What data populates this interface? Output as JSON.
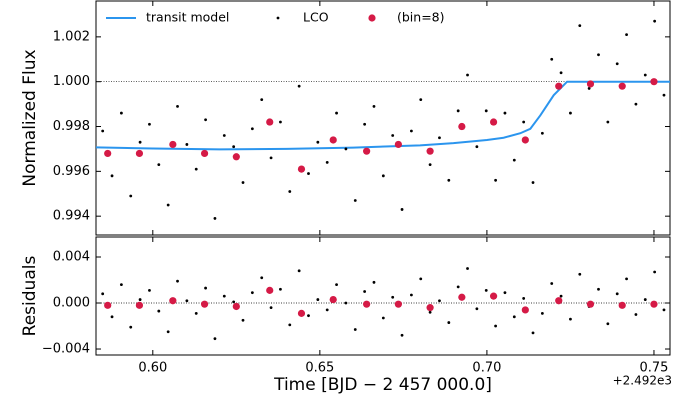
{
  "chart_data": [
    {
      "type": "scatter",
      "ylabel": "Normalized Flux",
      "xlim": [
        0.583,
        0.7548
      ],
      "ylim": [
        0.99316,
        1.0036
      ],
      "xticks": [
        0.6,
        0.65,
        0.7,
        0.75
      ],
      "yticks": [
        0.994,
        0.996,
        0.998,
        {
          "value": 1,
          "label": "1.000"
        },
        1.002
      ],
      "hline": 1,
      "legend": "upper left",
      "series": [
        {
          "name": "transit model",
          "color": "#2b95ee",
          "style": "line",
          "x": [
            0.583,
            0.6,
            0.62,
            0.64,
            0.66,
            0.68,
            0.69,
            0.7,
            0.705,
            0.71,
            0.713,
            0.716,
            0.72,
            0.724,
            0.73,
            0.7548
          ],
          "values": [
            0.99707,
            0.99702,
            0.99698,
            0.997,
            0.99706,
            0.99716,
            0.99726,
            0.9974,
            0.9975,
            0.9977,
            0.9979,
            0.9985,
            0.9994,
            1,
            1,
            1
          ]
        },
        {
          "name": "LCO",
          "color": "#000000",
          "style": "points",
          "x": [
            0.585,
            0.5878,
            0.5906,
            0.5934,
            0.5962,
            0.599,
            0.6018,
            0.6046,
            0.6074,
            0.6102,
            0.613,
            0.6158,
            0.6186,
            0.6214,
            0.6242,
            0.627,
            0.6298,
            0.6326,
            0.6354,
            0.6382,
            0.641,
            0.6438,
            0.6466,
            0.6494,
            0.6522,
            0.655,
            0.6578,
            0.6606,
            0.6634,
            0.6662,
            0.669,
            0.6718,
            0.6746,
            0.6774,
            0.6802,
            0.683,
            0.6858,
            0.6886,
            0.6914,
            0.6942,
            0.697,
            0.6998,
            0.7026,
            0.7054,
            0.7082,
            0.711,
            0.7138,
            0.7166,
            0.7194,
            0.7222,
            0.725,
            0.7278,
            0.7306,
            0.7334,
            0.7362,
            0.739,
            0.7418,
            0.7446,
            0.7474,
            0.7502,
            0.753
          ],
          "values": [
            0.9978,
            0.9958,
            0.9986,
            0.9949,
            0.9973,
            0.9981,
            0.9963,
            0.9945,
            0.9989,
            0.9972,
            0.9961,
            0.9983,
            0.9939,
            0.9976,
            0.9971,
            0.9955,
            0.9979,
            0.9992,
            0.9966,
            0.9982,
            0.9951,
            0.9998,
            0.9959,
            0.9973,
            0.9964,
            0.9986,
            0.997,
            0.9947,
            0.9981,
            0.9989,
            0.9958,
            0.9976,
            0.9943,
            0.9978,
            0.9992,
            0.9963,
            0.9975,
            0.9956,
            0.9987,
            1.0003,
            0.9971,
            0.9987,
            0.9956,
            0.9986,
            0.9965,
            0.9982,
            0.9955,
            0.9977,
            1.001,
            1.0004,
            0.9986,
            1.0025,
            0.9997,
            1.0012,
            0.9982,
            1.0008,
            1.0021,
            0.999,
            1.0003,
            1.0027,
            0.9994
          ]
        },
        {
          "name": "(bin=8)",
          "color": "#d51a46",
          "style": "binned",
          "x": [
            0.5865,
            0.596,
            0.606,
            0.6155,
            0.625,
            0.635,
            0.6445,
            0.654,
            0.664,
            0.6735,
            0.683,
            0.6925,
            0.702,
            0.7115,
            0.7215,
            0.731,
            0.7405,
            0.75
          ],
          "values": [
            0.9968,
            0.9968,
            0.9972,
            0.9968,
            0.99665,
            0.9982,
            0.9961,
            0.9974,
            0.9969,
            0.9972,
            0.9969,
            0.998,
            0.9982,
            0.9974,
            0.9998,
            0.9999,
            0.9998,
            1
          ]
        }
      ]
    },
    {
      "type": "scatter",
      "xlabel": "Time [BJD − 2 457 000.0]",
      "ylabel": "Residuals",
      "offset_text": "+2.492e3",
      "xlim": [
        0.583,
        0.7548
      ],
      "ylim": [
        -0.00452,
        0.00574
      ],
      "xticks": [
        {
          "value": 0.6,
          "label": "0.60"
        },
        {
          "value": 0.65,
          "label": "0.65"
        },
        {
          "value": 0.7,
          "label": "0.70"
        },
        {
          "value": 0.75,
          "label": "0.75"
        }
      ],
      "yticks": [
        {
          "value": -0.004,
          "label": "−0.004"
        },
        {
          "value": 0,
          "label": "0.000"
        },
        0.004
      ],
      "hline": 0,
      "series": [
        {
          "color": "#000000",
          "style": "points",
          "x": [
            0.585,
            0.5878,
            0.5906,
            0.5934,
            0.5962,
            0.599,
            0.6018,
            0.6046,
            0.6074,
            0.6102,
            0.613,
            0.6158,
            0.6186,
            0.6214,
            0.6242,
            0.627,
            0.6298,
            0.6326,
            0.6354,
            0.6382,
            0.641,
            0.6438,
            0.6466,
            0.6494,
            0.6522,
            0.655,
            0.6578,
            0.6606,
            0.6634,
            0.6662,
            0.669,
            0.6718,
            0.6746,
            0.6774,
            0.6802,
            0.683,
            0.6858,
            0.6886,
            0.6914,
            0.6942,
            0.697,
            0.6998,
            0.7026,
            0.7054,
            0.7082,
            0.711,
            0.7138,
            0.7166,
            0.7194,
            0.7222,
            0.725,
            0.7278,
            0.7306,
            0.7334,
            0.7362,
            0.739,
            0.7418,
            0.7446,
            0.7474,
            0.7502,
            0.753
          ],
          "values": [
            0.0008,
            -0.0012,
            0.0016,
            -0.0021,
            0.0003,
            0.0011,
            -0.0007,
            -0.0025,
            0.0019,
            0.0002,
            -0.0009,
            0.0013,
            -0.0031,
            0.0006,
            0.0001,
            -0.0015,
            0.0009,
            0.0022,
            -0.0004,
            0.0012,
            -0.0019,
            0.0028,
            -0.0011,
            0.0003,
            -0.0006,
            0.0016,
            0,
            -0.0023,
            0.001,
            0.0018,
            -0.0013,
            0.0005,
            -0.0028,
            0.0007,
            0.0021,
            -0.0008,
            0.0002,
            -0.0017,
            0.0014,
            0.003,
            -0.0005,
            0.0011,
            -0.002,
            0.0009,
            -0.0012,
            0.0004,
            -0.0026,
            -0.0009,
            0.0017,
            0.0006,
            -0.0014,
            0.0025,
            -0.0003,
            0.0012,
            -0.0018,
            0.0008,
            0.0021,
            -0.001,
            0.0003,
            0.0027,
            -0.0006
          ]
        },
        {
          "color": "#d51a46",
          "style": "binned",
          "x": [
            0.5865,
            0.596,
            0.606,
            0.6155,
            0.625,
            0.635,
            0.6445,
            0.654,
            0.664,
            0.6735,
            0.683,
            0.6925,
            0.702,
            0.7115,
            0.7215,
            0.731,
            0.7405,
            0.75
          ],
          "values": [
            -0.0002,
            -0.0002,
            0.0002,
            -0.0001,
            -0.0003,
            0.0011,
            -0.0009,
            0.0003,
            -0.0001,
            -0.0001,
            -0.0004,
            0.0005,
            0.0006,
            -0.0006,
            0.0002,
            -0.0001,
            -0.0002,
            -0.0001
          ]
        }
      ]
    }
  ]
}
